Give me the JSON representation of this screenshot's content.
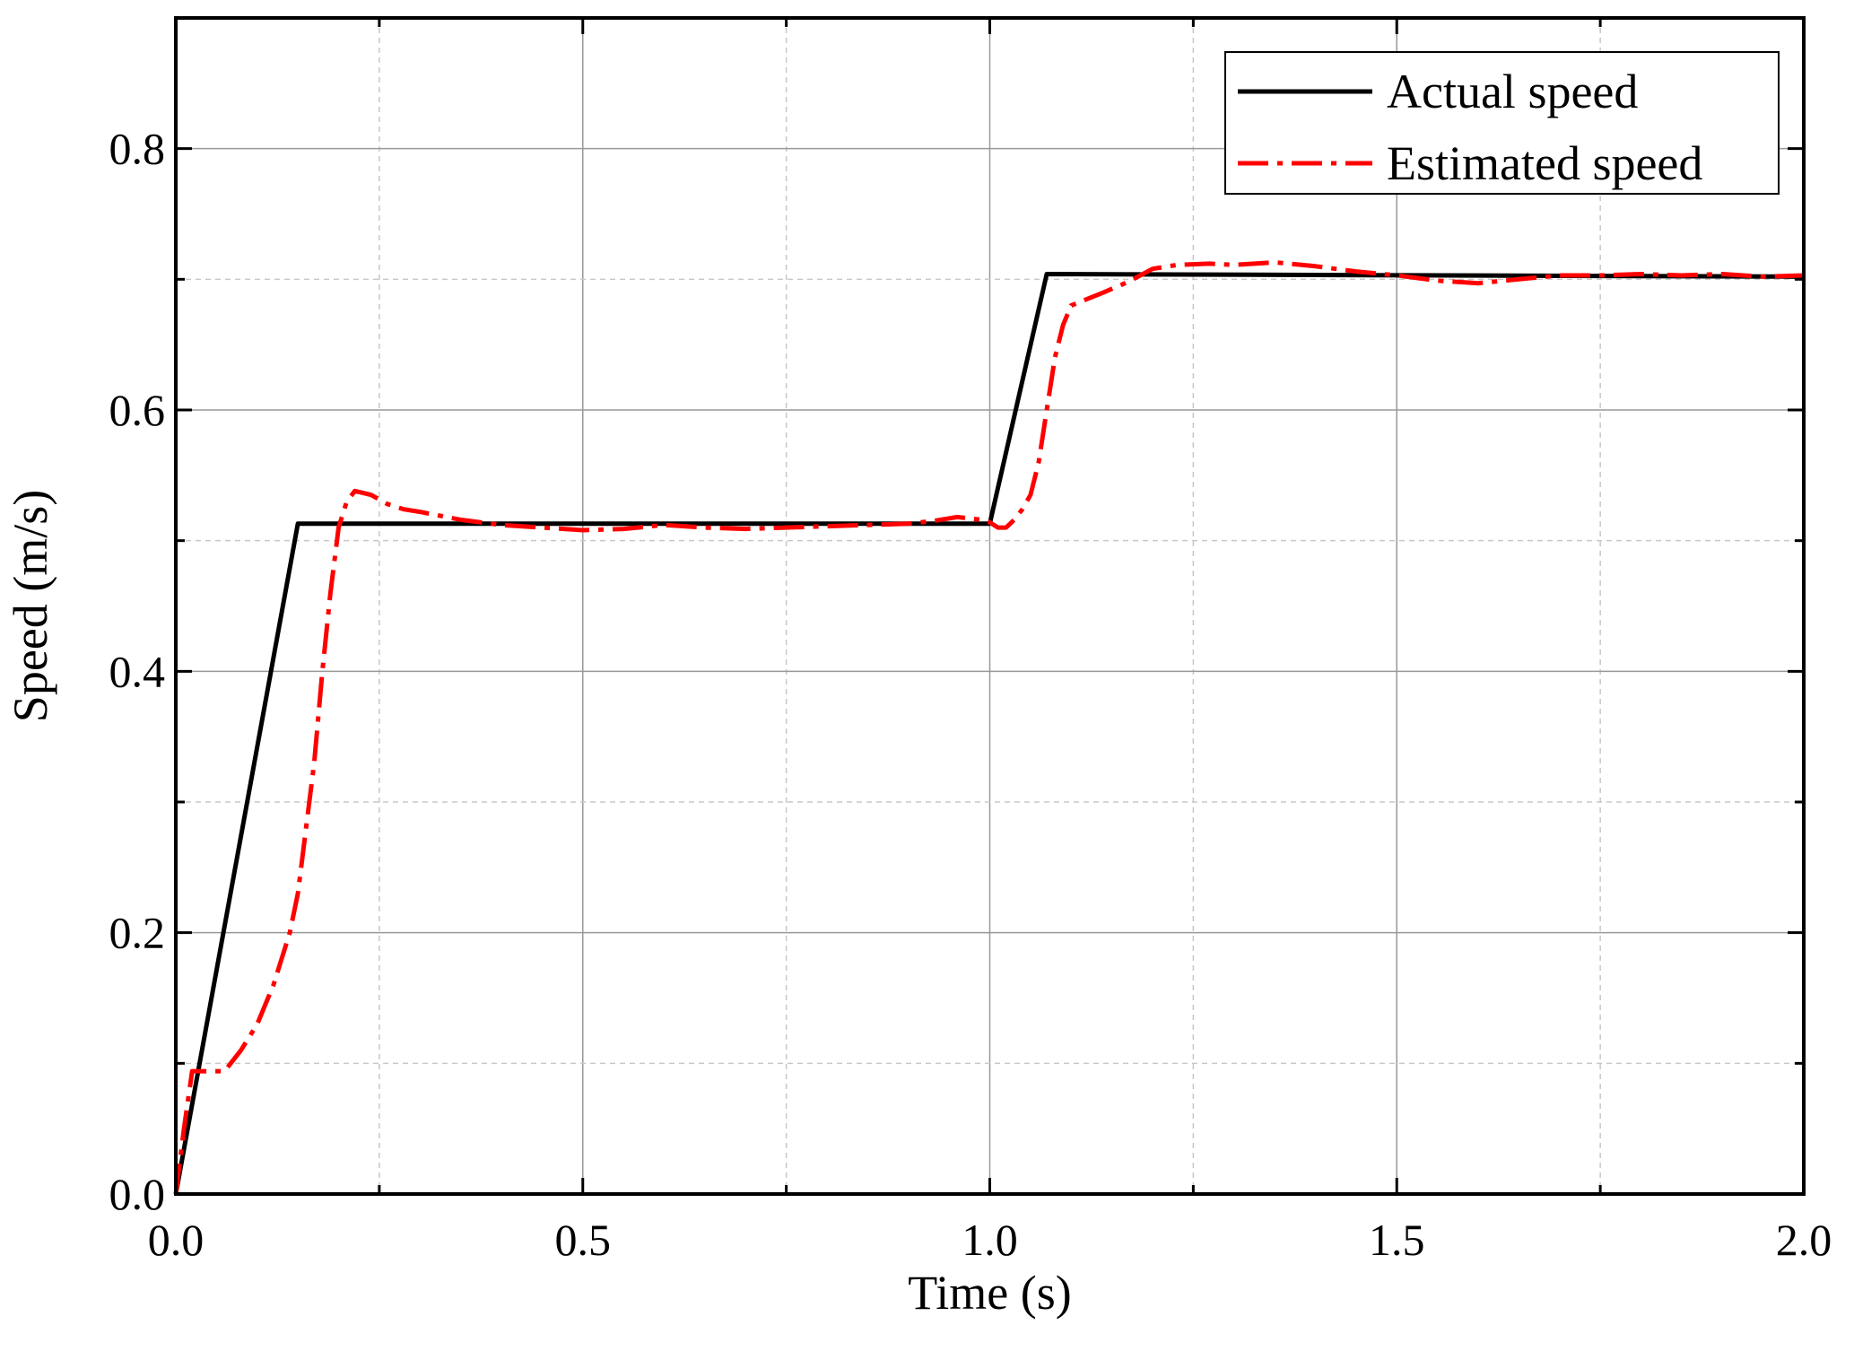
{
  "chart_data": {
    "type": "line",
    "xlabel": "Time (s)",
    "ylabel": "Speed (m/s)",
    "xlim": [
      0,
      2.0
    ],
    "ylim": [
      0,
      0.9
    ],
    "xticks": [
      0.0,
      0.5,
      1.0,
      1.5,
      2.0
    ],
    "xtick_labels": [
      "0.0",
      "0.5",
      "1.0",
      "1.5",
      "2.0"
    ],
    "yticks": [
      0.0,
      0.2,
      0.4,
      0.6,
      0.8
    ],
    "ytick_labels": [
      "0.0",
      "0.2",
      "0.4",
      "0.6",
      "0.8"
    ],
    "grid": true,
    "legend_position": "top-right",
    "series": [
      {
        "name": "Actual speed",
        "color": "#000000",
        "style": "solid",
        "x": [
          0.0,
          0.15,
          1.0,
          1.07,
          2.0
        ],
        "y": [
          0.0,
          0.513,
          0.513,
          0.704,
          0.702
        ]
      },
      {
        "name": "Estimated speed",
        "color": "#ff0000",
        "style": "dashdot",
        "x": [
          0.0,
          0.01,
          0.02,
          0.04,
          0.06,
          0.08,
          0.1,
          0.12,
          0.14,
          0.15,
          0.16,
          0.17,
          0.18,
          0.19,
          0.2,
          0.21,
          0.22,
          0.24,
          0.26,
          0.28,
          0.3,
          0.35,
          0.4,
          0.45,
          0.5,
          0.55,
          0.6,
          0.65,
          0.7,
          0.75,
          0.8,
          0.85,
          0.9,
          0.93,
          0.96,
          0.99,
          1.0,
          1.01,
          1.02,
          1.03,
          1.04,
          1.05,
          1.06,
          1.07,
          1.08,
          1.09,
          1.1,
          1.12,
          1.14,
          1.17,
          1.2,
          1.23,
          1.27,
          1.3,
          1.35,
          1.4,
          1.45,
          1.5,
          1.55,
          1.6,
          1.65,
          1.7,
          1.75,
          1.8,
          1.85,
          1.9,
          1.95,
          2.0
        ],
        "y": [
          0.0,
          0.05,
          0.094,
          0.094,
          0.094,
          0.11,
          0.13,
          0.16,
          0.2,
          0.23,
          0.28,
          0.33,
          0.4,
          0.46,
          0.51,
          0.53,
          0.538,
          0.535,
          0.528,
          0.524,
          0.522,
          0.516,
          0.512,
          0.51,
          0.508,
          0.509,
          0.512,
          0.51,
          0.509,
          0.51,
          0.511,
          0.512,
          0.513,
          0.515,
          0.518,
          0.516,
          0.514,
          0.51,
          0.51,
          0.516,
          0.524,
          0.535,
          0.56,
          0.6,
          0.64,
          0.665,
          0.68,
          0.685,
          0.69,
          0.698,
          0.708,
          0.711,
          0.712,
          0.711,
          0.713,
          0.71,
          0.706,
          0.703,
          0.699,
          0.697,
          0.7,
          0.703,
          0.703,
          0.704,
          0.703,
          0.704,
          0.702,
          0.703
        ]
      }
    ]
  }
}
